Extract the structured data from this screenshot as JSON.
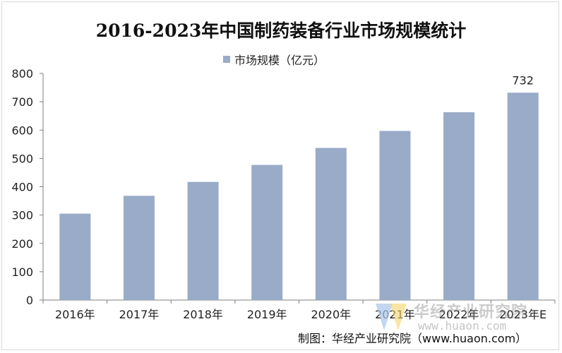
{
  "title": "2016-2023年中国制药装备行业市场规模统计",
  "legend": {
    "label": "市场规模（亿元）"
  },
  "source": "制图：华经产业研究院（www.huaon.com）",
  "watermark": {
    "brand": "华经产业研究院",
    "url": "www.huaon.com"
  },
  "colors": {
    "bar": "#9aabc8",
    "axis": "#7f7f7f",
    "grid": "#bfbfbf"
  },
  "chart_data": {
    "type": "bar",
    "title": "2016-2023年中国制药装备行业市场规模统计",
    "xlabel": "",
    "ylabel": "",
    "categories": [
      "2016年",
      "2017年",
      "2018年",
      "2019年",
      "2020年",
      "2021年",
      "2022年",
      "2023年E"
    ],
    "series": [
      {
        "name": "市场规模（亿元）",
        "values": [
          305,
          368,
          417,
          477,
          537,
          597,
          663,
          732
        ]
      }
    ],
    "data_labels": {
      "7": "732"
    },
    "ylim": [
      0,
      800
    ],
    "yticks": [
      0,
      100,
      200,
      300,
      400,
      500,
      600,
      700,
      800
    ],
    "grid": false,
    "legend_position": "top-center"
  }
}
